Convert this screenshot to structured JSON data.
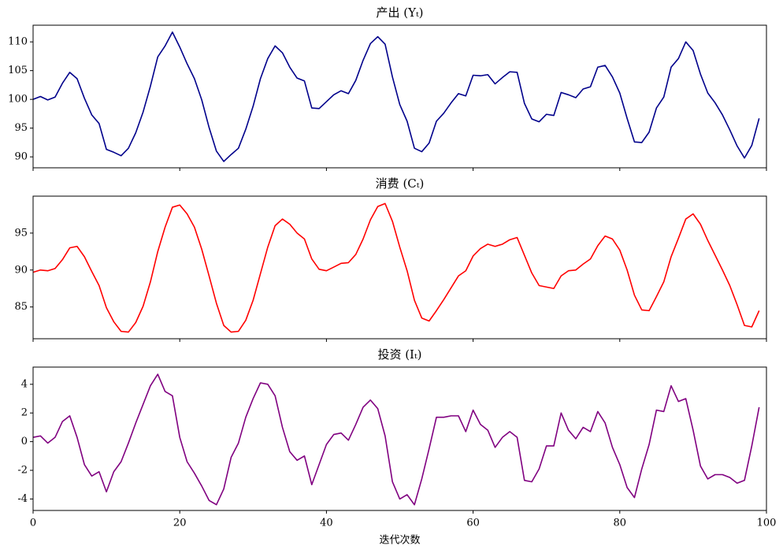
{
  "chart_data": [
    {
      "type": "line",
      "title": "产出 (Yₜ)",
      "color": "#00008b",
      "show_xtick_labels": false,
      "xlim": [
        0,
        100
      ],
      "xticks": [
        0,
        20,
        40,
        60,
        80,
        100
      ],
      "ylim": [
        88.1,
        112.9
      ],
      "yticks": [
        90,
        95,
        100,
        105,
        110
      ],
      "x": [
        0,
        1,
        2,
        3,
        4,
        5,
        6,
        7,
        8,
        9,
        10,
        11,
        12,
        13,
        14,
        15,
        16,
        17,
        18,
        19,
        20,
        21,
        22,
        23,
        24,
        25,
        26,
        27,
        28,
        29,
        30,
        31,
        32,
        33,
        34,
        35,
        36,
        37,
        38,
        39,
        40,
        41,
        42,
        43,
        44,
        45,
        46,
        47,
        48,
        49,
        50,
        51,
        52,
        53,
        54,
        55,
        56,
        57,
        58,
        59,
        60,
        61,
        62,
        63,
        64,
        65,
        66,
        67,
        68,
        69,
        70,
        71,
        72,
        73,
        74,
        75,
        76,
        77,
        78,
        79,
        80,
        81,
        82,
        83,
        84,
        85,
        86,
        87,
        88,
        89,
        90,
        91,
        92,
        93,
        94,
        95,
        96,
        97,
        98,
        99
      ],
      "values": [
        100,
        100.5,
        99.9,
        100.4,
        102.8,
        104.7,
        103.6,
        100.2,
        97.3,
        95.8,
        91.3,
        90.8,
        90.2,
        91.5,
        94.2,
        97.8,
        102.3,
        107.4,
        109.3,
        111.7,
        109.1,
        106.2,
        103.6,
        99.9,
        95.1,
        91.0,
        89.2,
        90.4,
        91.5,
        94.8,
        98.8,
        103.6,
        107.1,
        109.3,
        108.1,
        105.6,
        103.7,
        103.2,
        98.5,
        98.4,
        99.6,
        100.8,
        101.5,
        101.0,
        103.3,
        106.8,
        109.7,
        110.9,
        109.6,
        103.9,
        99.1,
        96.2,
        91.5,
        90.9,
        92.4,
        96.2,
        97.6,
        99.4,
        101.0,
        100.6,
        104.2,
        104.1,
        104.3,
        102.7,
        103.8,
        104.8,
        104.7,
        99.3,
        96.6,
        96.1,
        97.4,
        97.2,
        101.2,
        100.8,
        100.3,
        101.8,
        102.2,
        105.6,
        105.9,
        103.9,
        101.1,
        96.7,
        92.6,
        92.5,
        94.3,
        98.5,
        100.4,
        105.6,
        107.1,
        110.0,
        108.5,
        104.4,
        101.1,
        99.4,
        97.3,
        94.7,
        91.9,
        89.8,
        92.0,
        96.7
      ]
    },
    {
      "type": "line",
      "title": "消费 (Cₜ)",
      "color": "#ff0000",
      "show_xtick_labels": false,
      "xlim": [
        0,
        100
      ],
      "xticks": [
        0,
        20,
        40,
        60,
        80,
        100
      ],
      "ylim": [
        80.7,
        100.0
      ],
      "yticks": [
        85,
        90,
        95
      ],
      "x": [
        0,
        1,
        2,
        3,
        4,
        5,
        6,
        7,
        8,
        9,
        10,
        11,
        12,
        13,
        14,
        15,
        16,
        17,
        18,
        19,
        20,
        21,
        22,
        23,
        24,
        25,
        26,
        27,
        28,
        29,
        30,
        31,
        32,
        33,
        34,
        35,
        36,
        37,
        38,
        39,
        40,
        41,
        42,
        43,
        44,
        45,
        46,
        47,
        48,
        49,
        50,
        51,
        52,
        53,
        54,
        55,
        56,
        57,
        58,
        59,
        60,
        61,
        62,
        63,
        64,
        65,
        66,
        67,
        68,
        69,
        70,
        71,
        72,
        73,
        74,
        75,
        76,
        77,
        78,
        79,
        80,
        81,
        82,
        83,
        84,
        85,
        86,
        87,
        88,
        89,
        90,
        91,
        92,
        93,
        94,
        95,
        96,
        97,
        98,
        99
      ],
      "values": [
        89.7,
        90.0,
        89.9,
        90.2,
        91.4,
        93.0,
        93.2,
        91.8,
        89.8,
        87.9,
        84.9,
        83.0,
        81.7,
        81.6,
        82.9,
        85.1,
        88.4,
        92.5,
        95.8,
        98.5,
        98.8,
        97.6,
        95.8,
        92.8,
        89.2,
        85.5,
        82.5,
        81.6,
        81.7,
        83.2,
        85.9,
        89.5,
        93.1,
        96.0,
        96.9,
        96.2,
        95.0,
        94.2,
        91.5,
        90.1,
        89.9,
        90.4,
        90.9,
        91.0,
        92.1,
        94.2,
        96.8,
        98.6,
        99.0,
        96.6,
        93.1,
        89.9,
        85.9,
        83.5,
        83.1,
        84.5,
        86.0,
        87.6,
        89.2,
        89.9,
        91.9,
        92.9,
        93.5,
        93.2,
        93.5,
        94.1,
        94.4,
        92.0,
        89.6,
        87.9,
        87.7,
        87.5,
        89.2,
        89.9,
        90.0,
        90.8,
        91.5,
        93.3,
        94.6,
        94.2,
        92.7,
        90.0,
        86.6,
        84.6,
        84.5,
        86.4,
        88.4,
        91.8,
        94.3,
        96.9,
        97.6,
        96.2,
        94.0,
        92.0,
        90.0,
        87.9,
        85.3,
        82.5,
        82.3,
        84.5
      ]
    },
    {
      "type": "line",
      "title": "投资 (Iₜ)",
      "xlabel": "迭代次数",
      "color": "#800080",
      "show_xtick_labels": true,
      "xlim": [
        0,
        100
      ],
      "xticks": [
        0,
        20,
        40,
        60,
        80,
        100
      ],
      "ylim": [
        -4.8,
        5.2
      ],
      "yticks": [
        -4,
        -2,
        0,
        2,
        4
      ],
      "x": [
        0,
        1,
        2,
        3,
        4,
        5,
        6,
        7,
        8,
        9,
        10,
        11,
        12,
        13,
        14,
        15,
        16,
        17,
        18,
        19,
        20,
        21,
        22,
        23,
        24,
        25,
        26,
        27,
        28,
        29,
        30,
        31,
        32,
        33,
        34,
        35,
        36,
        37,
        38,
        39,
        40,
        41,
        42,
        43,
        44,
        45,
        46,
        47,
        48,
        49,
        50,
        51,
        52,
        53,
        54,
        55,
        56,
        57,
        58,
        59,
        60,
        61,
        62,
        63,
        64,
        65,
        66,
        67,
        68,
        69,
        70,
        71,
        72,
        73,
        74,
        75,
        76,
        77,
        78,
        79,
        80,
        81,
        82,
        83,
        84,
        85,
        86,
        87,
        88,
        89,
        90,
        91,
        92,
        93,
        94,
        95,
        96,
        97,
        98,
        99
      ],
      "values": [
        0.3,
        0.4,
        -0.1,
        0.3,
        1.4,
        1.8,
        0.3,
        -1.6,
        -2.4,
        -2.1,
        -3.5,
        -2.1,
        -1.4,
        -0.1,
        1.3,
        2.6,
        3.9,
        4.7,
        3.5,
        3.2,
        0.3,
        -1.4,
        -2.2,
        -3.1,
        -4.1,
        -4.4,
        -3.3,
        -1.1,
        -0.1,
        1.7,
        3.0,
        4.1,
        4.0,
        3.2,
        1.0,
        -0.7,
        -1.3,
        -1.0,
        -3.0,
        -1.6,
        -0.2,
        0.5,
        0.6,
        0.1,
        1.2,
        2.4,
        2.9,
        2.3,
        0.4,
        -2.8,
        -4.0,
        -3.7,
        -4.4,
        -2.6,
        -0.5,
        1.7,
        1.7,
        1.8,
        1.8,
        0.7,
        2.2,
        1.2,
        0.8,
        -0.4,
        0.3,
        0.7,
        0.3,
        -2.7,
        -2.8,
        -1.9,
        -0.3,
        -0.3,
        2.0,
        0.8,
        0.2,
        1.0,
        0.7,
        2.1,
        1.3,
        -0.4,
        -1.6,
        -3.2,
        -3.9,
        -1.9,
        -0.2,
        2.2,
        2.1,
        3.9,
        2.8,
        3.0,
        0.8,
        -1.7,
        -2.6,
        -2.3,
        -2.3,
        -2.5,
        -2.9,
        -2.7,
        -0.3,
        2.4
      ]
    }
  ]
}
